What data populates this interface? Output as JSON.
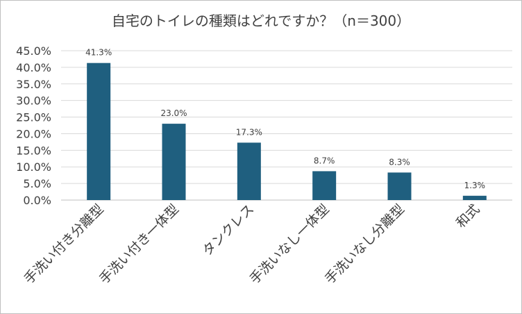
{
  "chart_data": {
    "type": "bar",
    "title": "自宅のトイレの種類はどれですか？（n＝300）",
    "categories": [
      "手洗い付き分離型",
      "手洗い付き一体型",
      "タンクレス",
      "手洗いなし一体型",
      "手洗いなし分離型",
      "和式"
    ],
    "values": [
      41.3,
      23.0,
      17.3,
      8.7,
      8.3,
      1.3
    ],
    "data_labels": [
      "41.3%",
      "23.0%",
      "17.3%",
      "8.7%",
      "8.3%",
      "1.3%"
    ],
    "y_ticks": [
      "0.0%",
      "5.0%",
      "10.0%",
      "15.0%",
      "20.0%",
      "25.0%",
      "30.0%",
      "35.0%",
      "40.0%",
      "45.0%"
    ],
    "ylim": [
      0,
      45
    ],
    "xlabel": "",
    "ylabel": "",
    "grid": true,
    "legend": "none",
    "bar_color": "#1f5f7f",
    "grid_color": "#d9d9d9",
    "text_color": "#404040"
  }
}
